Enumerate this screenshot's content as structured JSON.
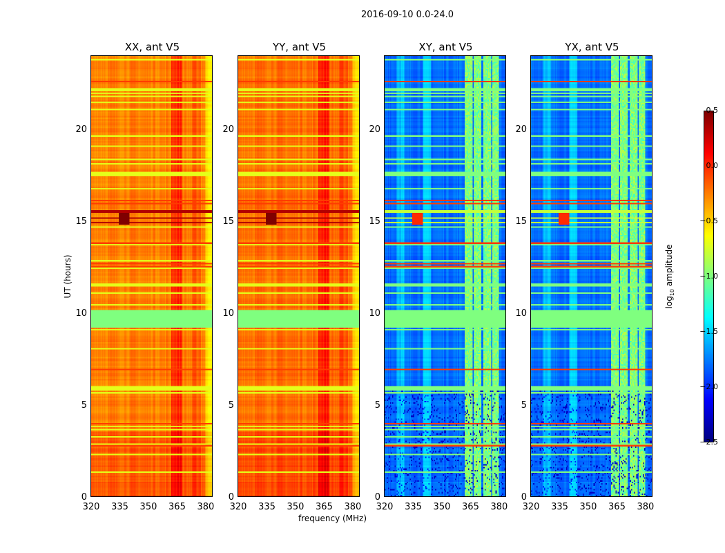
{
  "title": "2016-09-10 0.0-24.0",
  "chart_data": {
    "type": "heatmap",
    "title": "2016-09-10 0.0-24.0",
    "xlabel": "frequency (MHz)",
    "ylabel": "UT (hours)",
    "xlim": [
      320,
      384
    ],
    "ylim": [
      0,
      24
    ],
    "xticks": [
      "320",
      "335",
      "350",
      "365",
      "380"
    ],
    "xtick_values": [
      320,
      335,
      350,
      365,
      380
    ],
    "yticks": [
      "0",
      "5",
      "10",
      "15",
      "20"
    ],
    "ytick_values": [
      0,
      5,
      10,
      15,
      20
    ],
    "colormap": "jet",
    "colorbar": {
      "label_main": "log",
      "label_sub": "10",
      "label_rest": " amplitude",
      "range": [
        -2.5,
        0.5
      ],
      "ticks": [
        "0.5",
        "0.0",
        "−0.5",
        "−1.0",
        "−1.5",
        "−2.0",
        "−2.5"
      ],
      "tick_values": [
        0.5,
        0.0,
        -0.5,
        -1.0,
        -1.5,
        -2.0,
        -2.5
      ]
    },
    "panels": [
      {
        "title": "XX, ant V5",
        "typical_level": -0.25
      },
      {
        "title": "YY, ant V5",
        "typical_level": -0.2
      },
      {
        "title": "XY, ant V5",
        "typical_level": -1.8
      },
      {
        "title": "YX, ant V5",
        "typical_level": -1.8
      }
    ]
  }
}
